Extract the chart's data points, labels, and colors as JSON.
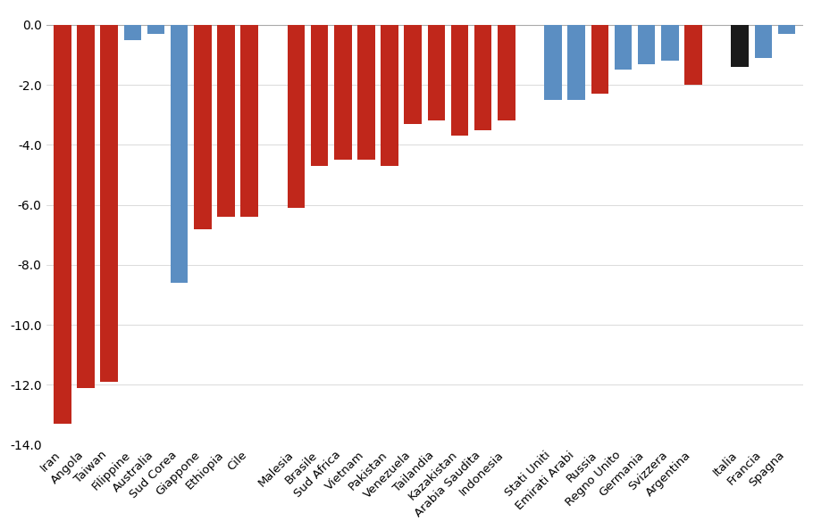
{
  "categories": [
    "Iran",
    "Angola",
    "Taiwan",
    "Filippine",
    "Australia",
    "Sud Corea",
    "Giappone",
    "Ethiopia",
    "Cile",
    "",
    "Malesia",
    "Brasile",
    "Sud Africa",
    "Vietnam",
    "Pakistan",
    "Venezuela",
    "Tailandia",
    "Kazakistan",
    "Arabia Saudita",
    "Indonesia",
    "",
    "Stati Uniti",
    "Emirati Arabi",
    "Russia",
    "Regno Unito",
    "Germania",
    "Svizzera",
    "Argentina",
    "",
    "Italia",
    "Francia",
    "Spagna"
  ],
  "values": [
    -13.3,
    -12.1,
    -11.9,
    -0.5,
    -0.3,
    -8.6,
    -6.8,
    -6.4,
    -6.4,
    null,
    -6.1,
    -4.7,
    -4.5,
    -4.5,
    -4.7,
    -3.3,
    -3.2,
    -3.7,
    -3.5,
    -3.2,
    null,
    -2.5,
    -2.5,
    -2.3,
    -1.5,
    -1.3,
    -1.2,
    -2.0,
    null,
    -1.4,
    -1.1,
    -0.3
  ],
  "colors": [
    "#c0271b",
    "#c0271b",
    "#c0271b",
    "#5b8ec2",
    "#5b8ec2",
    "#5b8ec2",
    "#c0271b",
    "#c0271b",
    "#c0271b",
    null,
    "#c0271b",
    "#c0271b",
    "#c0271b",
    "#c0271b",
    "#c0271b",
    "#c0271b",
    "#c0271b",
    "#c0271b",
    "#c0271b",
    "#c0271b",
    null,
    "#5b8ec2",
    "#5b8ec2",
    "#c0271b",
    "#5b8ec2",
    "#5b8ec2",
    "#5b8ec2",
    "#c0271b",
    null,
    "#1a1a1a",
    "#5b8ec2",
    "#5b8ec2"
  ],
  "ylim": [
    -14.0,
    0.5
  ],
  "yticks": [
    0.0,
    -2.0,
    -4.0,
    -6.0,
    -8.0,
    -10.0,
    -12.0,
    -14.0
  ],
  "background_color": "#ffffff",
  "bar_width": 0.75,
  "tick_fontsize": 9.5,
  "ytick_fontsize": 10
}
